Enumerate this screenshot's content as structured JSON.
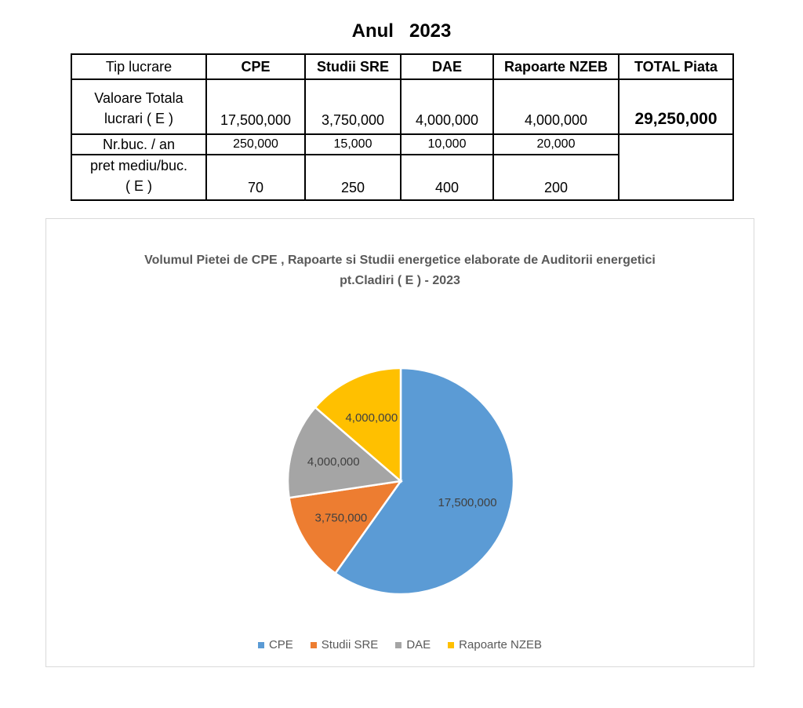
{
  "page_title": "Anul   2023",
  "table": {
    "header": [
      "Tip lucrare",
      "CPE",
      "Studii SRE",
      "DAE",
      "Rapoarte NZEB",
      "TOTAL Piata"
    ],
    "rows": [
      {
        "label_line1": "Valoare Totala",
        "label_line2": "lucrari ( E )",
        "values": [
          "17,500,000",
          "3,750,000",
          "4,000,000",
          "4,000,000"
        ],
        "total": "29,250,000"
      },
      {
        "label": "Nr.buc. / an",
        "values": [
          "250,000",
          "15,000",
          "10,000",
          "20,000"
        ]
      },
      {
        "label_line1": "pret mediu/buc.",
        "label_line2": "( E )",
        "values": [
          "70",
          "250",
          "400",
          "200"
        ]
      }
    ]
  },
  "chart_data": {
    "type": "pie",
    "title": "Volumul Pietei de CPE , Rapoarte si Studii energetice elaborate de Auditorii energetici pt.Cladiri ( E )  - 2023",
    "categories": [
      "CPE",
      "Studii SRE",
      "DAE",
      "Rapoarte NZEB"
    ],
    "values": [
      17500000,
      3750000,
      4000000,
      4000000
    ],
    "labels": [
      "17,500,000",
      "3,750,000",
      "4,000,000",
      "4,000,000"
    ],
    "colors": [
      "#5b9bd5",
      "#ed7d31",
      "#a5a5a5",
      "#ffc000"
    ],
    "legend_position": "bottom",
    "start_angle_deg": 0,
    "direction": "clockwise"
  }
}
